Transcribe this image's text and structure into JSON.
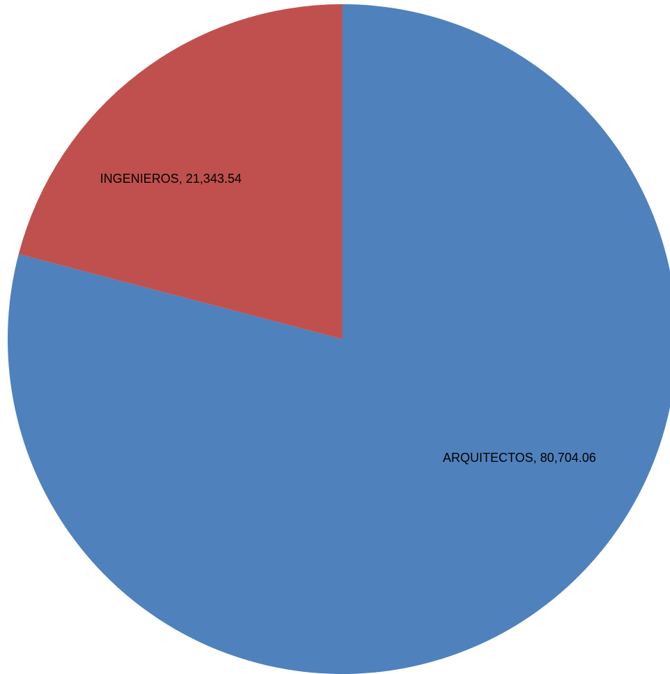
{
  "chart_data": {
    "type": "pie",
    "slices": [
      {
        "label": "ARQUITECTOS",
        "value": 80704.06,
        "value_text": "80,704.06",
        "color": "#4F81BD"
      },
      {
        "label": "INGENIEROS",
        "value": 21343.54,
        "value_text": "21,343.54",
        "color": "#C0504D"
      }
    ],
    "start_angle": "12 o'clock",
    "direction": "clockwise",
    "legend": "none",
    "data_labels": "category, value"
  }
}
